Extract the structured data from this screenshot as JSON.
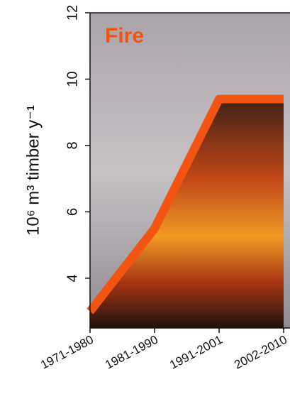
{
  "chart_data": {
    "type": "line",
    "title": "Fire",
    "y_label": "10⁶ m³ timber y⁻¹",
    "categories": [
      "1971-1980",
      "1981-1990",
      "1991-2001",
      "2002-2010"
    ],
    "series": [
      {
        "name": "Fire",
        "color": "#f25512",
        "values": [
          3.0,
          5.5,
          9.4,
          9.4
        ]
      }
    ],
    "ylim": [
      2.5,
      12
    ],
    "yticks": [
      4,
      6,
      8,
      10,
      12
    ]
  }
}
